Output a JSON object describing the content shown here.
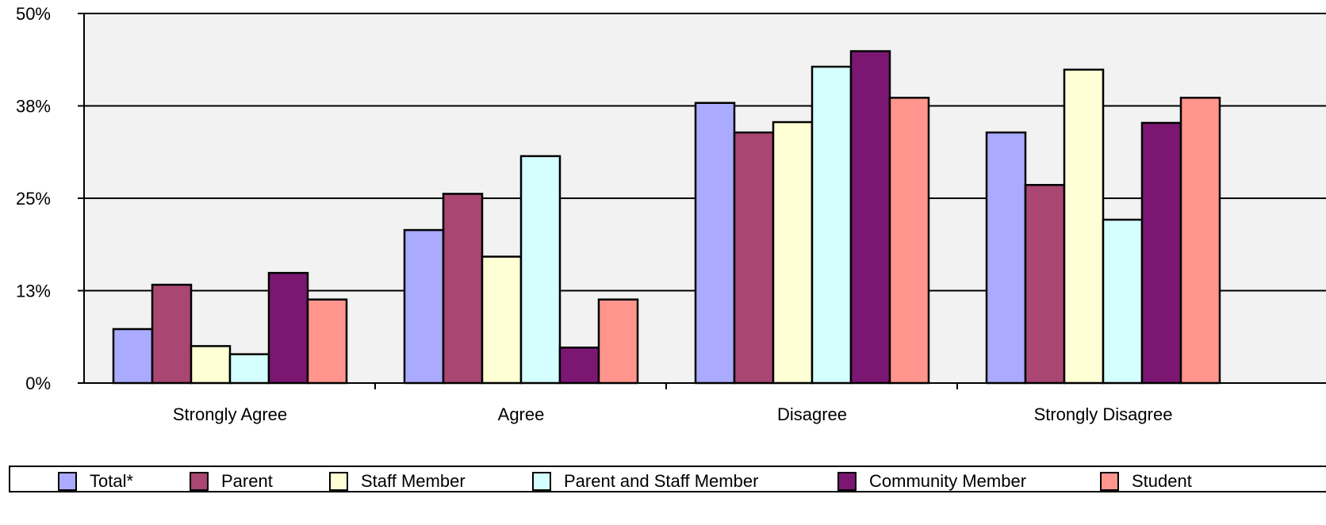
{
  "chart_data": {
    "type": "bar",
    "categories": [
      "Strongly Agree",
      "Agree",
      "Disagree",
      "Strongly Disagree"
    ],
    "series": [
      {
        "name": "Total*",
        "color": "#aaaaff",
        "values": [
          7.3,
          20.7,
          37.9,
          33.9
        ]
      },
      {
        "name": "Parent",
        "color": "#a94672",
        "values": [
          13.3,
          25.6,
          33.9,
          26.8
        ]
      },
      {
        "name": "Staff Member",
        "color": "#ffffd5",
        "values": [
          5.0,
          17.1,
          35.3,
          42.4
        ]
      },
      {
        "name": "Parent and Staff Member",
        "color": "#d5ffff",
        "values": [
          3.9,
          30.7,
          42.8,
          22.1
        ]
      },
      {
        "name": "Community Member",
        "color": "#7b1772",
        "values": [
          14.9,
          4.8,
          44.9,
          35.2
        ]
      },
      {
        "name": "Student",
        "color": "#ff958d",
        "values": [
          11.3,
          11.3,
          38.6,
          38.6
        ]
      }
    ],
    "yticks": [
      "0%",
      "13%",
      "25%",
      "38%",
      "50%"
    ],
    "ylim": [
      0,
      50
    ],
    "grid": true,
    "legend_position": "bottom",
    "title": "",
    "xlabel": "",
    "ylabel": ""
  }
}
